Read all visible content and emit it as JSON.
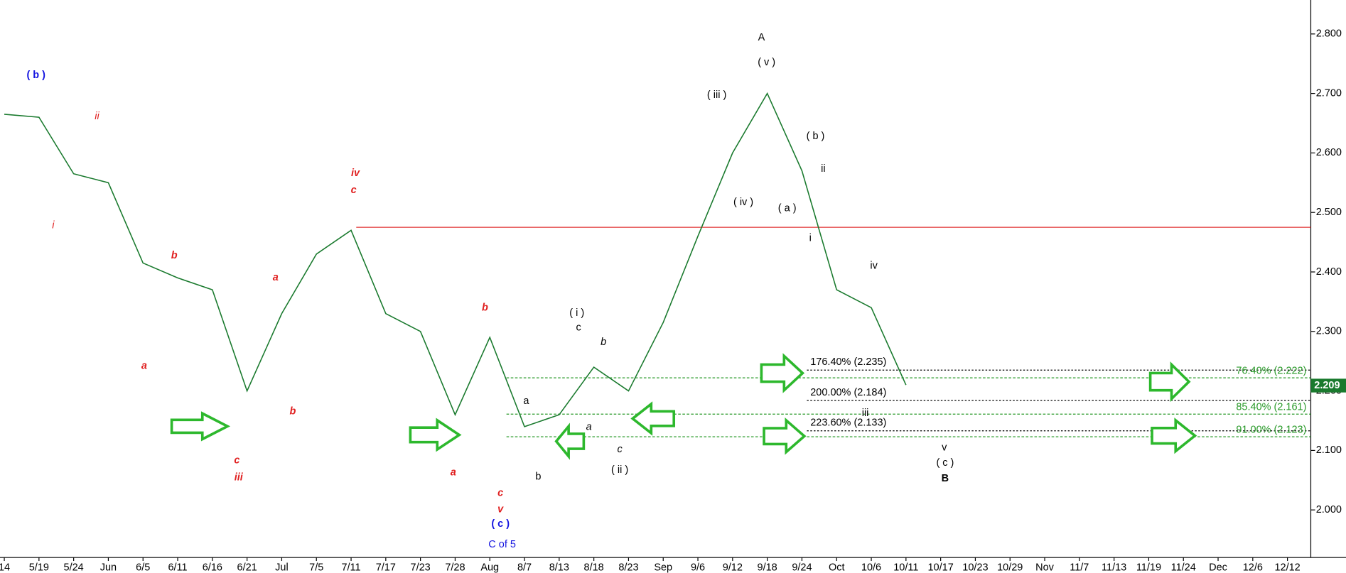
{
  "chart_data": {
    "type": "line",
    "categories": [
      "14",
      "5/19",
      "5/24",
      "Jun",
      "6/5",
      "6/11",
      "6/16",
      "6/21",
      "Jul",
      "7/5",
      "7/11",
      "7/17",
      "7/23",
      "7/28",
      "Aug",
      "8/7",
      "8/13",
      "8/18",
      "8/23",
      "Sep",
      "9/6",
      "9/12",
      "9/18",
      "9/24",
      "Oct",
      "10/6",
      "10/11",
      "10/17",
      "10/23",
      "10/29",
      "Nov",
      "11/7",
      "11/13",
      "11/19",
      "11/24",
      "Dec",
      "12/6",
      "12/12"
    ],
    "series": [
      {
        "color": "#1a7a2e",
        "values": [
          2.665,
          2.66,
          2.565,
          2.55,
          2.415,
          2.39,
          2.37,
          2.2,
          2.33,
          2.43,
          2.47,
          2.33,
          2.3,
          2.16,
          2.29,
          2.14,
          2.16,
          2.24,
          2.2,
          2.315,
          2.46,
          2.6,
          2.7,
          2.57,
          2.37,
          2.34,
          2.21,
          null,
          null,
          null,
          null,
          null,
          null,
          null,
          null,
          null,
          null,
          null
        ]
      }
    ],
    "ylim": [
      1.92,
      2.857
    ],
    "yticks": [
      {
        "value": 2.0,
        "label": "2.000"
      },
      {
        "value": 2.1,
        "label": "2.100"
      },
      {
        "value": 2.2,
        "label": "2.200"
      },
      {
        "value": 2.3,
        "label": "2.300"
      },
      {
        "value": 2.4,
        "label": "2.400"
      },
      {
        "value": 2.5,
        "label": "2.500"
      },
      {
        "value": 2.6,
        "label": "2.600"
      },
      {
        "value": 2.7,
        "label": "2.700"
      },
      {
        "value": 2.8,
        "label": "2.800"
      }
    ],
    "last_value": {
      "value": 2.209,
      "label": "2.209",
      "color": "#1a7a2e"
    },
    "resistance": {
      "value": 2.475,
      "color": "#e03030"
    },
    "levels": [
      {
        "label": "176.40% (2.235)",
        "value": 2.235,
        "color": "#000000"
      },
      {
        "label": "200.00% (2.184)",
        "value": 2.184,
        "color": "#000000"
      },
      {
        "label": "223.60% (2.133)",
        "value": 2.133,
        "color": "#000000"
      },
      {
        "label": "76.40% (2.222)",
        "value": 2.222,
        "color": "#2a9a2a"
      },
      {
        "label": "85.40% (2.161)",
        "value": 2.161,
        "color": "#2a9a2a"
      },
      {
        "label": "91.00% (2.123)",
        "value": 2.123,
        "color": "#2a9a2a"
      }
    ],
    "annotations": [
      {
        "text": "( b )",
        "color": "#1515e0"
      },
      {
        "text": "ii",
        "color": "#e02020"
      },
      {
        "text": "i",
        "color": "#e02020"
      },
      {
        "text": "b",
        "color": "#e02020"
      },
      {
        "text": "a",
        "color": "#e02020"
      },
      {
        "text": "c",
        "color": "#e02020"
      },
      {
        "text": "iii",
        "color": "#e02020"
      },
      {
        "text": "a",
        "color": "#e02020"
      },
      {
        "text": "b",
        "color": "#e02020"
      },
      {
        "text": "iv",
        "color": "#e02020"
      },
      {
        "text": "c",
        "color": "#e02020"
      },
      {
        "text": "b",
        "color": "#e02020"
      },
      {
        "text": "a",
        "color": "#e02020"
      },
      {
        "text": "c",
        "color": "#e02020"
      },
      {
        "text": "v",
        "color": "#e02020"
      },
      {
        "text": "( c )",
        "color": "#1515e0"
      },
      {
        "text": "C of 5",
        "color": "#1515e0"
      },
      {
        "text": "a",
        "color": "#000000"
      },
      {
        "text": "b",
        "color": "#000000"
      },
      {
        "text": "( i )",
        "color": "#000000"
      },
      {
        "text": "c",
        "color": "#000000"
      },
      {
        "text": "b",
        "color": "#000000"
      },
      {
        "text": "a",
        "color": "#000000"
      },
      {
        "text": "c",
        "color": "#000000"
      },
      {
        "text": "( ii )",
        "color": "#000000"
      },
      {
        "text": "( iii )",
        "color": "#000000"
      },
      {
        "text": "( iv )",
        "color": "#000000"
      },
      {
        "text": "A",
        "color": "#000000"
      },
      {
        "text": "( v )",
        "color": "#000000"
      },
      {
        "text": "( a )",
        "color": "#000000"
      },
      {
        "text": "( b )",
        "color": "#000000"
      },
      {
        "text": "ii",
        "color": "#000000"
      },
      {
        "text": "i",
        "color": "#000000"
      },
      {
        "text": "iv",
        "color": "#000000"
      },
      {
        "text": "iii",
        "color": "#000000"
      },
      {
        "text": "v",
        "color": "#000000"
      },
      {
        "text": "( c )",
        "color": "#000000"
      },
      {
        "text": "B",
        "color": "#000000"
      }
    ]
  }
}
